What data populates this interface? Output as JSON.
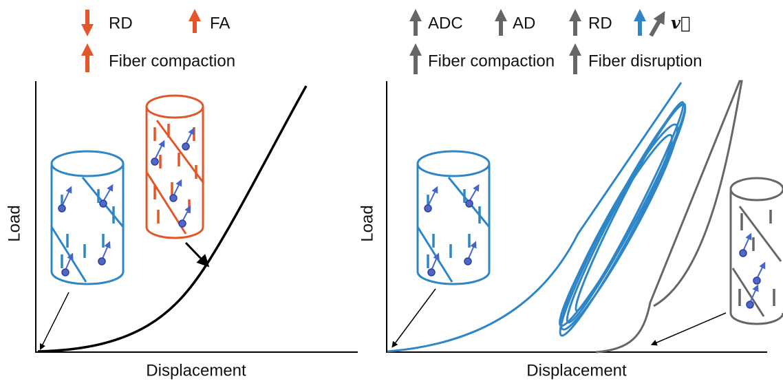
{
  "left_panel": {
    "legend": {
      "rd": "RD",
      "fa": "FA",
      "fiber_compaction": "Fiber compaction"
    },
    "y_axis_label": "Load",
    "x_axis_label": "Displacement"
  },
  "right_panel": {
    "legend": {
      "adc": "ADC",
      "ad": "AD",
      "rd": "RD",
      "velocity": "v⃗",
      "fiber_compaction": "Fiber compaction",
      "fiber_disruption": "Fiber disruption"
    },
    "y_axis_label": "Load",
    "x_axis_label": "Displacement"
  }
}
